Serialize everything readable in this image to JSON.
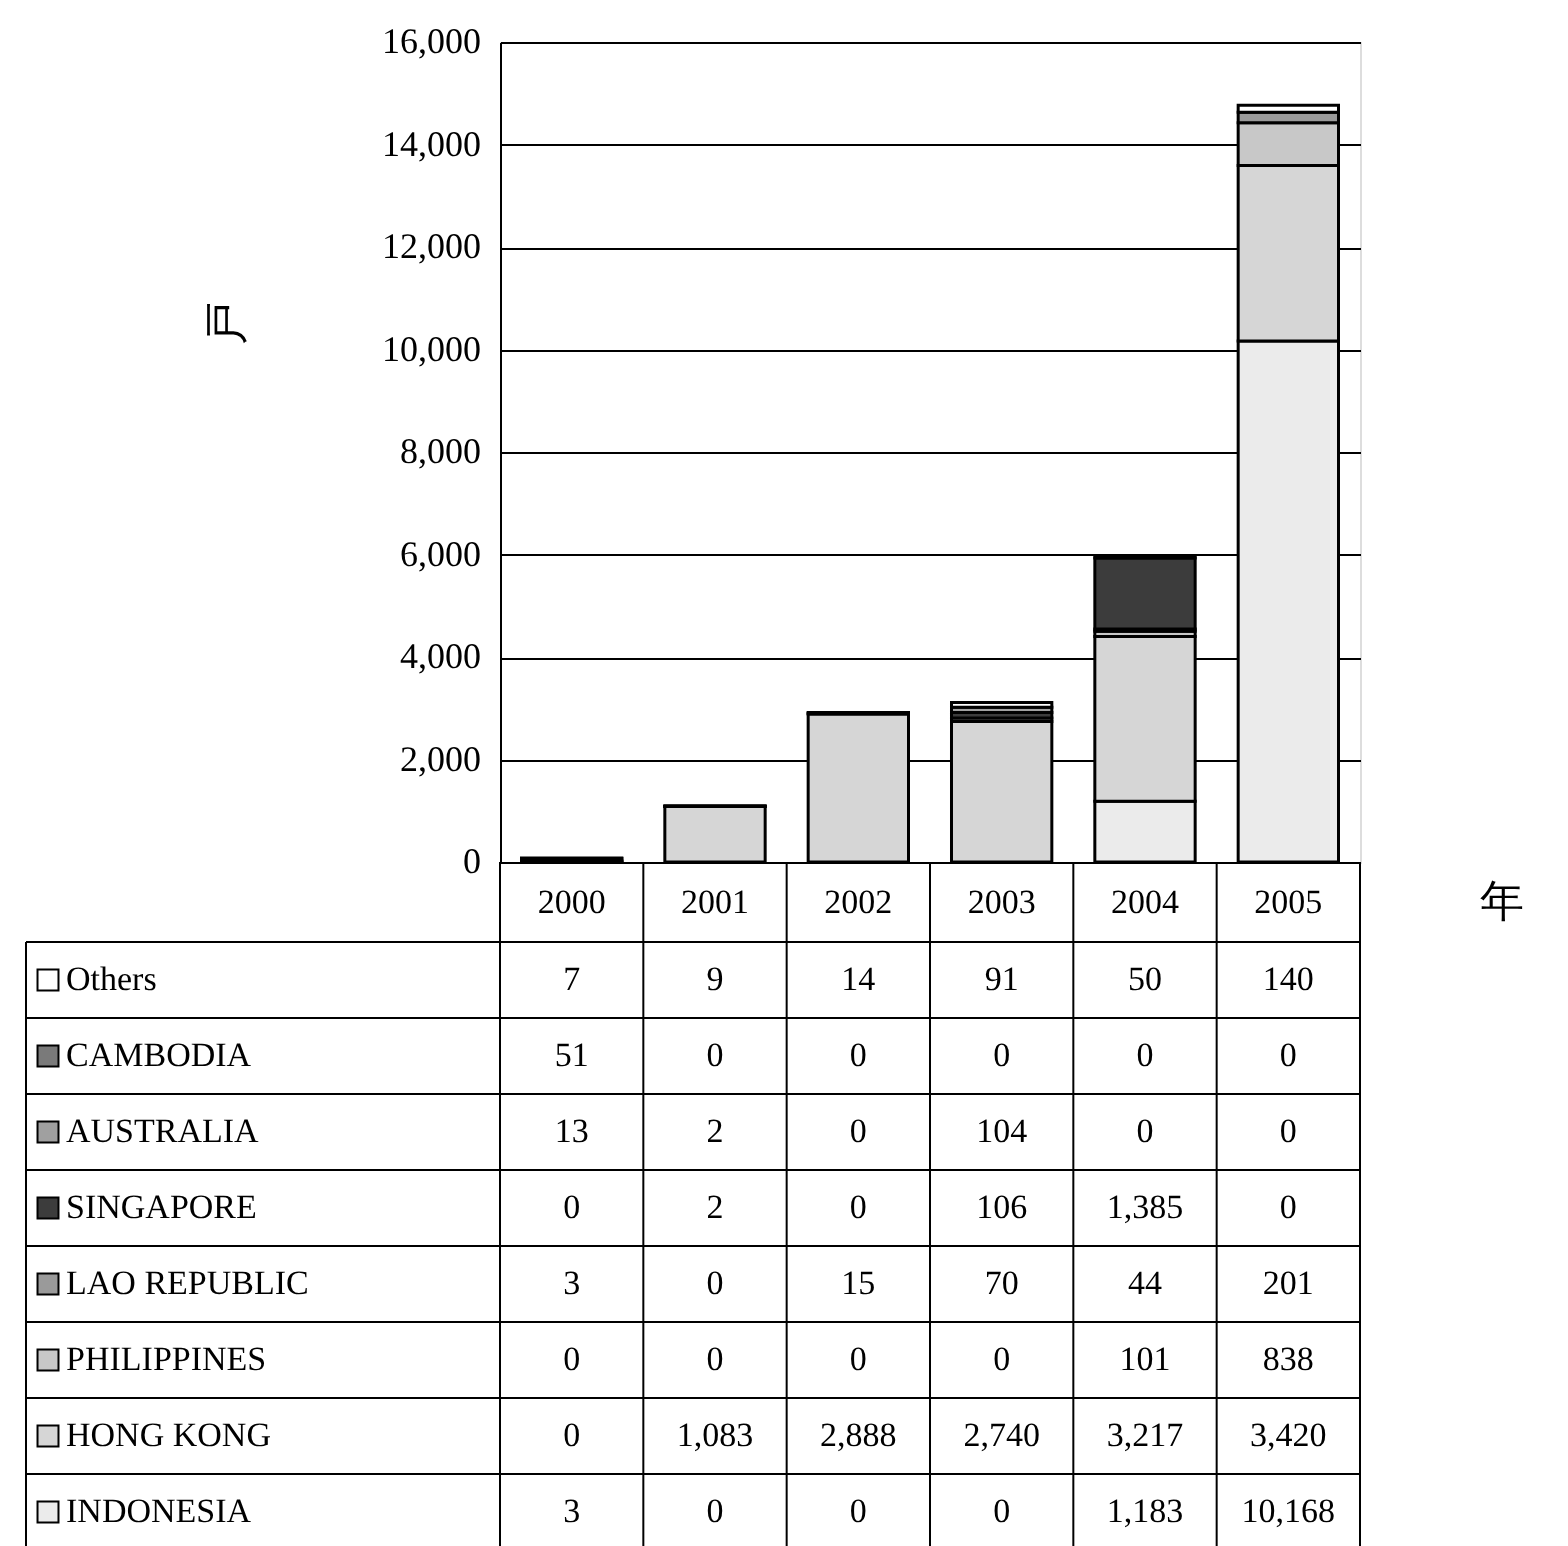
{
  "chart_data": {
    "type": "bar",
    "stacked": true,
    "ylabel": "戸",
    "xlabel": "年",
    "categories": [
      "2000",
      "2001",
      "2002",
      "2003",
      "2004",
      "2005"
    ],
    "series": [
      {
        "name": "INDONESIA",
        "color": "#ebebeb",
        "values": [
          3,
          0,
          0,
          0,
          1183,
          10168
        ],
        "value_labels": [
          "3",
          "0",
          "0",
          "0",
          "1,183",
          "10,168"
        ]
      },
      {
        "name": "HONG KONG",
        "color": "#d6d6d6",
        "values": [
          0,
          1083,
          2888,
          2740,
          3217,
          3420
        ],
        "value_labels": [
          "0",
          "1,083",
          "2,888",
          "2,740",
          "3,217",
          "3,420"
        ]
      },
      {
        "name": "PHILIPPINES",
        "color": "#c8c8c8",
        "values": [
          0,
          0,
          0,
          0,
          101,
          838
        ],
        "value_labels": [
          "0",
          "0",
          "0",
          "0",
          "101",
          "838"
        ]
      },
      {
        "name": "LAO REPUBLIC",
        "color": "#9a9a9a",
        "values": [
          3,
          0,
          15,
          70,
          44,
          201
        ],
        "value_labels": [
          "3",
          "0",
          "15",
          "70",
          "44",
          "201"
        ]
      },
      {
        "name": "SINGAPORE",
        "color": "#3c3c3c",
        "values": [
          0,
          2,
          0,
          106,
          1385,
          0
        ],
        "value_labels": [
          "0",
          "2",
          "0",
          "106",
          "1,385",
          "0"
        ]
      },
      {
        "name": "AUSTRALIA",
        "color": "#a0a0a0",
        "values": [
          13,
          2,
          0,
          104,
          0,
          0
        ],
        "value_labels": [
          "13",
          "2",
          "0",
          "104",
          "0",
          "0"
        ]
      },
      {
        "name": "CAMBODIA",
        "color": "#7a7a7a",
        "values": [
          51,
          0,
          0,
          0,
          0,
          0
        ],
        "value_labels": [
          "51",
          "0",
          "0",
          "0",
          "0",
          "0"
        ]
      },
      {
        "name": "Others",
        "color": "#ffffff",
        "values": [
          7,
          9,
          14,
          91,
          50,
          140
        ],
        "value_labels": [
          "7",
          "9",
          "14",
          "91",
          "50",
          "140"
        ]
      }
    ],
    "ylim": [
      0,
      16000
    ],
    "yticks": [
      0,
      {
        "value": 2000,
        "label": "2,000"
      },
      {
        "value": 4000,
        "label": "4,000"
      },
      {
        "value": 6000,
        "label": "6,000"
      },
      {
        "value": 8000,
        "label": "8,000"
      },
      {
        "value": 10000,
        "label": "10,000"
      },
      {
        "value": 12000,
        "label": "12,000"
      },
      {
        "value": 14000,
        "label": "14,000"
      },
      {
        "value": 16000,
        "label": "16,000"
      }
    ],
    "grid": "y",
    "legend": "bottom"
  }
}
